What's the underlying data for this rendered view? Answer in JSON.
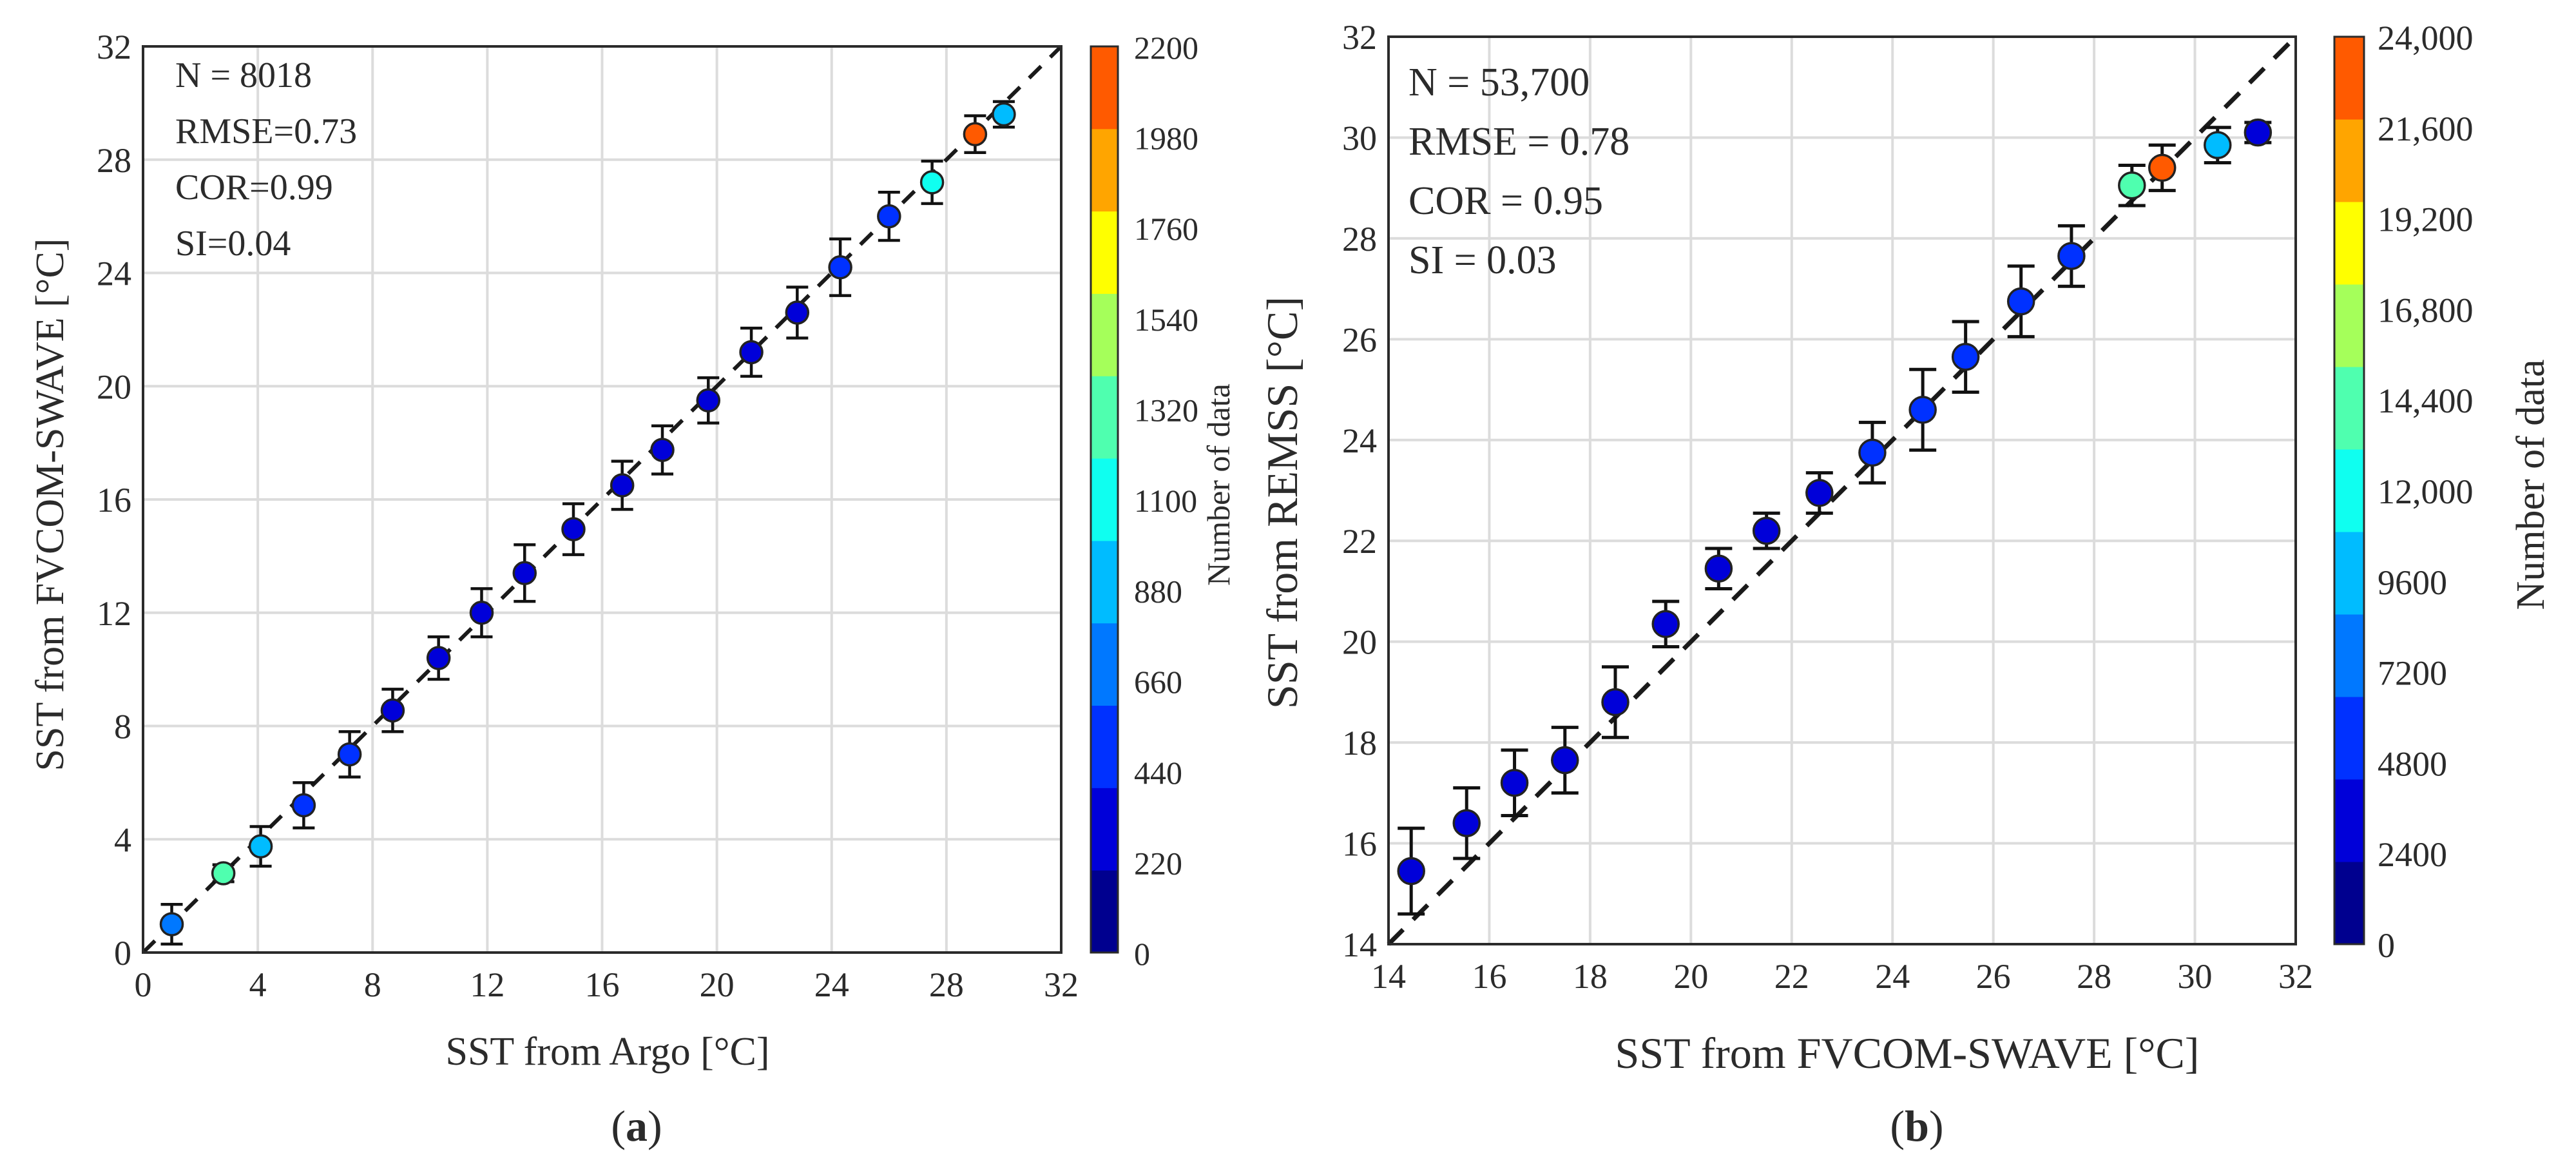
{
  "colors": {
    "colorbar": [
      "#00008f",
      "#0000d9",
      "#0031ff",
      "#0078ff",
      "#00bcff",
      "#0ffff0",
      "#4fffaf",
      "#a5ff5a",
      "#ffff00",
      "#ffa500",
      "#ff5a00"
    ],
    "grid": "#dcdcdc",
    "ink": "#2b2b2b"
  },
  "chart_data": [
    {
      "type": "scatter",
      "panel_label": "(a)",
      "panel_letter": "a",
      "xlabel": "SST from Argo [°C]",
      "ylabel": "SST  from FVCOM-SWAVE [°C]",
      "xlim": [
        0,
        32
      ],
      "ylim": [
        0,
        32
      ],
      "xticks": [
        "0",
        "4",
        "8",
        "12",
        "16",
        "20",
        "24",
        "28",
        "32"
      ],
      "yticks": [
        "0",
        "4",
        "8",
        "12",
        "16",
        "20",
        "24",
        "28",
        "32"
      ],
      "grid": true,
      "one_to_one_line": true,
      "stats": [
        "N = 8018",
        "RMSE=0.73",
        "COR=0.99",
        "SI=0.04"
      ],
      "colorbar": {
        "label": "Number of data",
        "min": 0,
        "max": 2200,
        "ticks": [
          "0",
          "220",
          "440",
          "660",
          "880",
          "1100",
          "1320",
          "1540",
          "1760",
          "1980",
          "2200"
        ]
      },
      "points": [
        {
          "x": 1.0,
          "y": 1.0,
          "err": 0.7,
          "count": 600
        },
        {
          "x": 2.8,
          "y": 2.8,
          "err": 0.3,
          "count": 1250
        },
        {
          "x": 4.1,
          "y": 3.75,
          "err": 0.7,
          "count": 800
        },
        {
          "x": 5.6,
          "y": 5.2,
          "err": 0.8,
          "count": 500
        },
        {
          "x": 7.2,
          "y": 7.0,
          "err": 0.8,
          "count": 500
        },
        {
          "x": 8.7,
          "y": 8.55,
          "err": 0.75,
          "count": 350
        },
        {
          "x": 10.3,
          "y": 10.4,
          "err": 0.75,
          "count": 350
        },
        {
          "x": 11.8,
          "y": 12.0,
          "err": 0.85,
          "count": 330
        },
        {
          "x": 13.3,
          "y": 13.4,
          "err": 1.0,
          "count": 320
        },
        {
          "x": 15.0,
          "y": 14.95,
          "err": 0.9,
          "count": 330
        },
        {
          "x": 16.7,
          "y": 16.5,
          "err": 0.85,
          "count": 370
        },
        {
          "x": 18.1,
          "y": 17.75,
          "err": 0.85,
          "count": 330
        },
        {
          "x": 19.7,
          "y": 19.5,
          "err": 0.8,
          "count": 360
        },
        {
          "x": 21.2,
          "y": 21.2,
          "err": 0.85,
          "count": 380
        },
        {
          "x": 22.8,
          "y": 22.6,
          "err": 0.9,
          "count": 370
        },
        {
          "x": 24.3,
          "y": 24.2,
          "err": 1.0,
          "count": 420
        },
        {
          "x": 26.0,
          "y": 26.0,
          "err": 0.85,
          "count": 500
        },
        {
          "x": 27.5,
          "y": 27.2,
          "err": 0.75,
          "count": 1050
        },
        {
          "x": 29.0,
          "y": 28.9,
          "err": 0.65,
          "count": 2150
        },
        {
          "x": 30.0,
          "y": 29.6,
          "err": 0.45,
          "count": 800
        }
      ]
    },
    {
      "type": "scatter",
      "panel_label": "(b)",
      "panel_letter": "b",
      "xlabel": "SST from FVCOM-SWAVE [°C]",
      "ylabel": "SST from REMSS [°C]",
      "xlim": [
        14,
        32
      ],
      "ylim": [
        14,
        32
      ],
      "xticks": [
        "14",
        "16",
        "18",
        "20",
        "22",
        "24",
        "26",
        "28",
        "30",
        "32"
      ],
      "yticks": [
        "14",
        "16",
        "18",
        "20",
        "22",
        "24",
        "26",
        "28",
        "30",
        "32"
      ],
      "grid": true,
      "one_to_one_line": true,
      "stats": [
        "N = 53,700",
        "RMSE = 0.78",
        "COR = 0.95",
        "SI = 0.03"
      ],
      "colorbar": {
        "label": "Number of data",
        "min": 0,
        "max": 24000,
        "ticks": [
          "0",
          "2400",
          "4800",
          "7200",
          "9600",
          "12,000",
          "14,400",
          "16,800",
          "19,200",
          "21,600",
          "24,000"
        ]
      },
      "points": [
        {
          "x": 14.45,
          "y": 15.45,
          "err": 0.85,
          "count": 3500
        },
        {
          "x": 15.55,
          "y": 16.4,
          "err": 0.7,
          "count": 3500
        },
        {
          "x": 16.5,
          "y": 17.2,
          "err": 0.65,
          "count": 3800
        },
        {
          "x": 17.5,
          "y": 17.65,
          "err": 0.65,
          "count": 3800
        },
        {
          "x": 18.5,
          "y": 18.8,
          "err": 0.7,
          "count": 3800
        },
        {
          "x": 19.5,
          "y": 20.35,
          "err": 0.45,
          "count": 3800
        },
        {
          "x": 20.55,
          "y": 21.45,
          "err": 0.4,
          "count": 4000
        },
        {
          "x": 21.5,
          "y": 22.2,
          "err": 0.35,
          "count": 4000
        },
        {
          "x": 22.55,
          "y": 22.95,
          "err": 0.4,
          "count": 4000
        },
        {
          "x": 23.6,
          "y": 23.75,
          "err": 0.6,
          "count": 4500
        },
        {
          "x": 24.6,
          "y": 24.6,
          "err": 0.8,
          "count": 4500
        },
        {
          "x": 25.45,
          "y": 25.65,
          "err": 0.7,
          "count": 5500
        },
        {
          "x": 26.55,
          "y": 26.75,
          "err": 0.7,
          "count": 5500
        },
        {
          "x": 27.55,
          "y": 27.65,
          "err": 0.6,
          "count": 6000
        },
        {
          "x": 28.75,
          "y": 29.05,
          "err": 0.4,
          "count": 13500
        },
        {
          "x": 29.35,
          "y": 29.4,
          "err": 0.45,
          "count": 23000
        },
        {
          "x": 30.45,
          "y": 29.85,
          "err": 0.35,
          "count": 9500
        },
        {
          "x": 31.25,
          "y": 30.1,
          "err": 0.2,
          "count": 4000
        }
      ]
    }
  ]
}
